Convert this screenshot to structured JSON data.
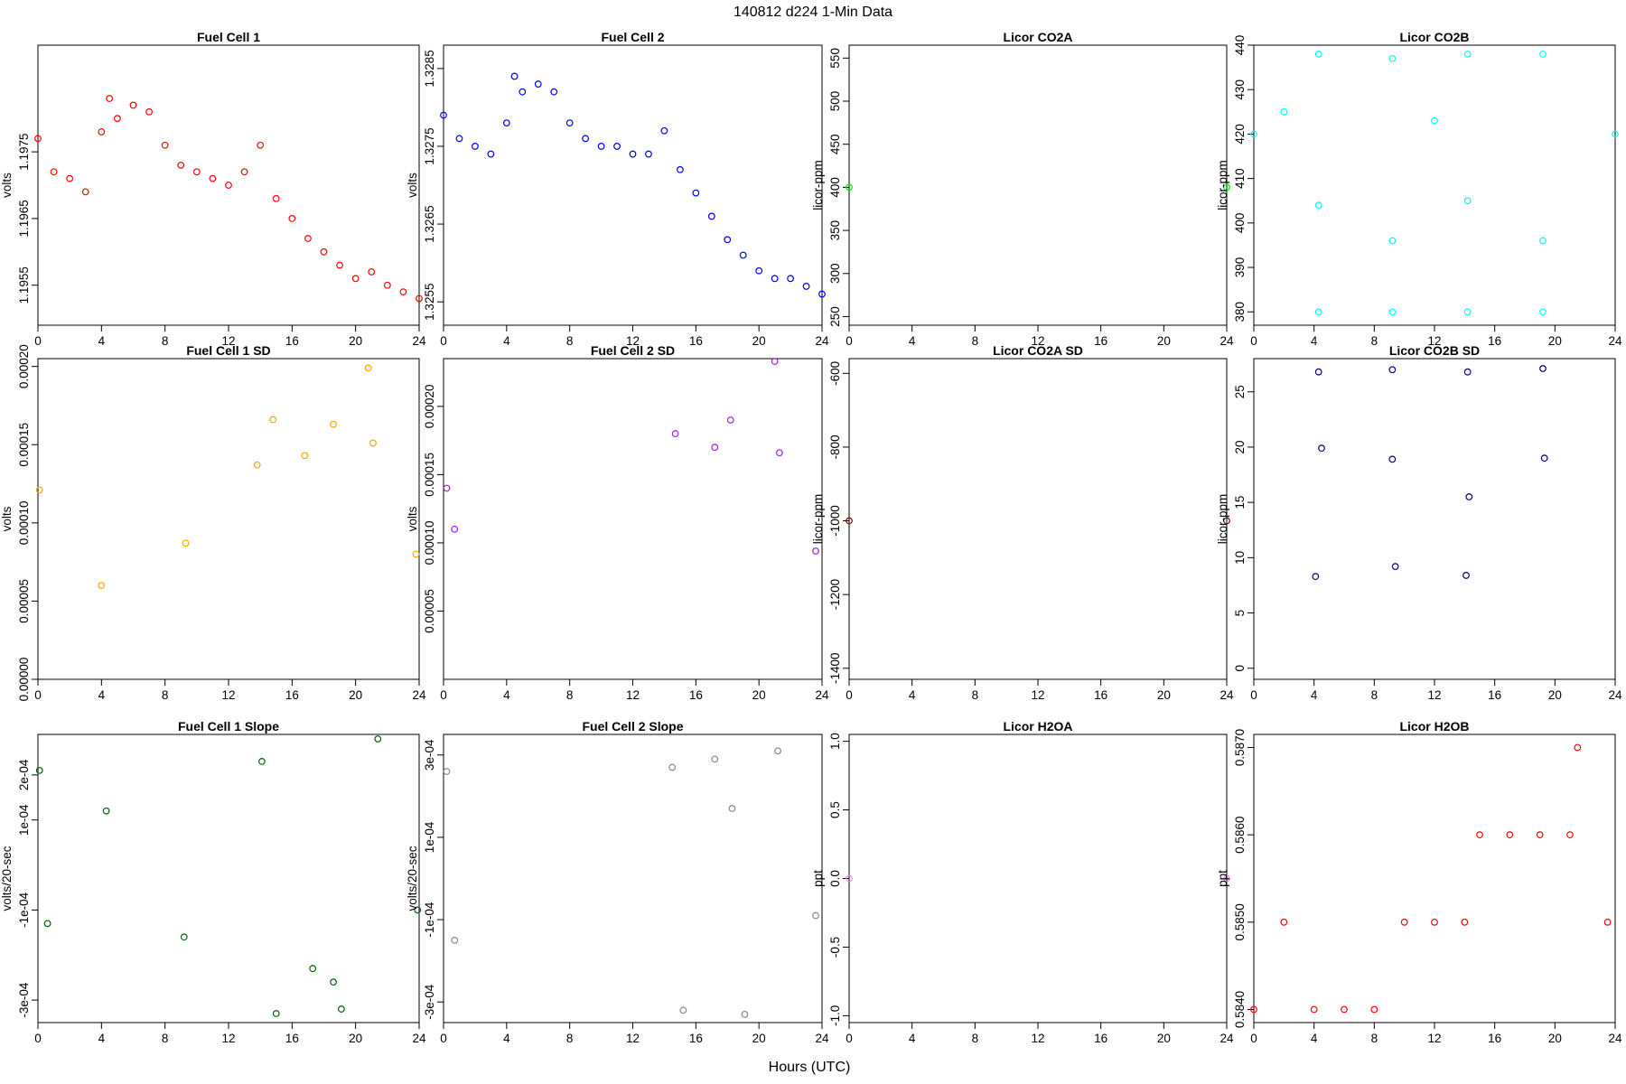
{
  "figure": {
    "title": "140812   d224   1-Min Data",
    "xlabel": "Hours (UTC)"
  },
  "chart_data": [
    {
      "type": "scatter",
      "title": "Fuel Cell 1",
      "ylabel": "volts",
      "color": "#ff0000",
      "xlim": [
        0,
        24
      ],
      "ylim": [
        1.1949,
        1.1991
      ],
      "xticks": [
        0,
        4,
        8,
        12,
        16,
        20,
        24
      ],
      "yticks": [
        1.1955,
        1.1965,
        1.1975
      ],
      "ytick_labels": [
        "1.1955",
        "1.1965",
        "1.1975"
      ],
      "x": [
        0,
        1,
        2,
        3,
        4,
        4.5,
        5,
        6,
        7,
        8,
        9,
        10,
        11,
        12,
        13,
        14,
        15,
        16,
        17,
        18,
        19,
        20,
        21,
        22,
        23,
        24
      ],
      "y": [
        1.1977,
        1.1972,
        1.1971,
        1.1969,
        1.1978,
        1.1983,
        1.198,
        1.1982,
        1.1981,
        1.1976,
        1.1973,
        1.1972,
        1.1971,
        1.197,
        1.1972,
        1.1976,
        1.1968,
        1.1965,
        1.1962,
        1.196,
        1.1958,
        1.1956,
        1.1957,
        1.1955,
        1.1954,
        1.1953
      ]
    },
    {
      "type": "scatter",
      "title": "Fuel Cell 2",
      "ylabel": "volts",
      "color": "#0000ee",
      "xlim": [
        0,
        24
      ],
      "ylim": [
        1.3252,
        1.3288
      ],
      "xticks": [
        0,
        4,
        8,
        12,
        16,
        20,
        24
      ],
      "yticks": [
        1.3255,
        1.3265,
        1.3275,
        1.3285
      ],
      "ytick_labels": [
        "1.3255",
        "1.3265",
        "1.3275",
        "1.3285"
      ],
      "x": [
        0,
        1,
        2,
        3,
        4,
        4.5,
        5,
        6,
        7,
        8,
        9,
        10,
        11,
        12,
        13,
        14,
        15,
        16,
        17,
        18,
        19,
        20,
        21,
        22,
        23,
        24
      ],
      "y": [
        1.3279,
        1.3276,
        1.3275,
        1.3274,
        1.3278,
        1.3284,
        1.3282,
        1.3283,
        1.3282,
        1.3278,
        1.3276,
        1.3275,
        1.3275,
        1.3274,
        1.3274,
        1.3277,
        1.3272,
        1.3269,
        1.3266,
        1.3263,
        1.3261,
        1.3259,
        1.3258,
        1.3258,
        1.3257,
        1.3256
      ]
    },
    {
      "type": "scatter",
      "title": "Licor CO2A",
      "ylabel": "licor-ppm",
      "color": "#00ee00",
      "xlim": [
        0,
        24
      ],
      "ylim": [
        240,
        565
      ],
      "xticks": [
        0,
        4,
        8,
        12,
        16,
        20,
        24
      ],
      "yticks": [
        250,
        300,
        350,
        400,
        450,
        500,
        550
      ],
      "ytick_labels": [
        "250",
        "300",
        "350",
        "400",
        "450",
        "500",
        "550"
      ],
      "x": [
        0,
        24
      ],
      "y": [
        400,
        400
      ]
    },
    {
      "type": "scatter",
      "title": "Licor CO2B",
      "ylabel": "licor-ppm",
      "color": "#00ffff",
      "xlim": [
        0,
        24
      ],
      "ylim": [
        377,
        440
      ],
      "xticks": [
        0,
        4,
        8,
        12,
        16,
        20,
        24
      ],
      "yticks": [
        380,
        390,
        400,
        410,
        420,
        430,
        440
      ],
      "ytick_labels": [
        "380",
        "390",
        "400",
        "410",
        "420",
        "430",
        "440"
      ],
      "x": [
        0,
        2,
        4.3,
        4.3,
        4.3,
        9.2,
        9.2,
        9.2,
        12,
        14.2,
        14.2,
        14.2,
        19.2,
        19.2,
        19.2,
        24
      ],
      "y": [
        420,
        425,
        438,
        380,
        404,
        437,
        380,
        396,
        423,
        438,
        380,
        405,
        438,
        380,
        396,
        420
      ]
    },
    {
      "type": "scatter",
      "title": "Fuel Cell 1 SD",
      "ylabel": "volts",
      "color": "#ffa500",
      "xlim": [
        0,
        24
      ],
      "ylim": [
        0,
        0.000205
      ],
      "xticks": [
        0,
        4,
        8,
        12,
        16,
        20,
        24
      ],
      "yticks": [
        0,
        5e-05,
        0.0001,
        0.00015,
        0.0002
      ],
      "ytick_labels": [
        "0.00000",
        "0.00005",
        "0.00010",
        "0.00015",
        "0.00020"
      ],
      "x": [
        0.1,
        4,
        9.3,
        13.8,
        14.8,
        16.8,
        18.6,
        20.8,
        21.1,
        23.8
      ],
      "y": [
        0.000121,
        6e-05,
        8.7e-05,
        0.000137,
        0.000166,
        0.000143,
        0.000163,
        0.000199,
        0.000151,
        8e-05
      ]
    },
    {
      "type": "scatter",
      "title": "Fuel Cell 2 SD",
      "ylabel": "volts",
      "color": "#a020f0",
      "xlim": [
        0,
        24
      ],
      "ylim": [
        0,
        0.000235
      ],
      "xticks": [
        0,
        4,
        8,
        12,
        16,
        20,
        24
      ],
      "yticks": [
        5e-05,
        0.0001,
        0.00015,
        0.0002
      ],
      "ytick_labels": [
        "0.00005",
        "0.00010",
        "0.00015",
        "0.00020"
      ],
      "x": [
        0.2,
        0.7,
        14.7,
        17.2,
        18.2,
        21,
        21.3,
        23.6
      ],
      "y": [
        0.00014,
        0.00011,
        0.00018,
        0.00017,
        0.00019,
        0.000233,
        0.000166,
        9.4e-05
      ]
    },
    {
      "type": "scatter",
      "title": "Licor CO2A SD",
      "ylabel": "licor-ppm",
      "color": "#8b0000",
      "xlim": [
        0,
        24
      ],
      "ylim": [
        -1430,
        -560
      ],
      "xticks": [
        0,
        4,
        8,
        12,
        16,
        20,
        24
      ],
      "yticks": [
        -1400,
        -1200,
        -1000,
        -800,
        -600
      ],
      "ytick_labels": [
        "-1400",
        "-1200",
        "-1000",
        "-800",
        "-600"
      ],
      "x": [
        0,
        24
      ],
      "y": [
        -1000,
        -1000
      ]
    },
    {
      "type": "scatter",
      "title": "Licor CO2B SD",
      "ylabel": "licor-ppm",
      "color": "#000080",
      "xlim": [
        0,
        24
      ],
      "ylim": [
        -1,
        28
      ],
      "xticks": [
        0,
        4,
        8,
        12,
        16,
        20,
        24
      ],
      "yticks": [
        0,
        5,
        10,
        15,
        20,
        25
      ],
      "ytick_labels": [
        "0",
        "5",
        "10",
        "15",
        "20",
        "25"
      ],
      "x": [
        4.3,
        4.5,
        9.2,
        9.2,
        9.4,
        14.2,
        14.3,
        19.2,
        19.3,
        4.1,
        14.1
      ],
      "y": [
        26.8,
        19.9,
        27,
        18.9,
        9.2,
        26.8,
        15.5,
        27.1,
        19,
        8.3,
        8.4
      ]
    },
    {
      "type": "scatter",
      "title": "Fuel Cell 1 Slope",
      "ylabel": "volts/20-sec",
      "color": "#006400",
      "xlim": [
        0,
        24
      ],
      "ylim": [
        -0.00035,
        0.00029
      ],
      "xticks": [
        0,
        4,
        8,
        12,
        16,
        20,
        24
      ],
      "yticks": [
        -0.0003,
        -0.0001,
        0.0001,
        0.0002
      ],
      "ytick_labels": [
        "-3e-04",
        "-1e-04",
        "1e-04",
        "2e-04"
      ],
      "x": [
        0.1,
        0.6,
        4.3,
        9.2,
        14.1,
        15,
        17.3,
        18.6,
        19.1,
        21.4,
        23.9
      ],
      "y": [
        0.00021,
        -0.00013,
        0.00012,
        -0.00016,
        0.00023,
        -0.00033,
        -0.00023,
        -0.00026,
        -0.00032,
        0.00028,
        -0.0001
      ]
    },
    {
      "type": "scatter",
      "title": "Fuel Cell 2 Slope",
      "ylabel": "volts/20-sec",
      "color": "#888888",
      "xlim": [
        0,
        24
      ],
      "ylim": [
        -0.00035,
        0.00035
      ],
      "xticks": [
        0,
        4,
        8,
        12,
        16,
        20,
        24
      ],
      "yticks": [
        -0.0003,
        -0.0001,
        0.0001,
        0.0003
      ],
      "ytick_labels": [
        "-3e-04",
        "-1e-04",
        "1e-04",
        "3e-04"
      ],
      "x": [
        0.2,
        0.7,
        14.5,
        15.2,
        17.2,
        18.3,
        19.1,
        21.2,
        23.6
      ],
      "y": [
        0.00026,
        -0.00015,
        0.00027,
        -0.00032,
        0.00029,
        0.00017,
        -0.00033,
        0.00031,
        -9e-05
      ]
    },
    {
      "type": "scatter",
      "title": "Licor H2OA",
      "ylabel": "ppt",
      "color": "#ee82ee",
      "xlim": [
        0,
        24
      ],
      "ylim": [
        -1.05,
        1.05
      ],
      "xticks": [
        0,
        4,
        8,
        12,
        16,
        20,
        24
      ],
      "yticks": [
        -1,
        -0.5,
        0,
        0.5,
        1
      ],
      "ytick_labels": [
        "-1.0",
        "-0.5",
        "0.0",
        "0.5",
        "1.0"
      ],
      "x": [
        0,
        24
      ],
      "y": [
        0,
        0
      ]
    },
    {
      "type": "scatter",
      "title": "Licor H2OB",
      "ylabel": "ppt",
      "color": "#ff0000",
      "xlim": [
        0,
        24
      ],
      "ylim": [
        0.58385,
        0.58715
      ],
      "xticks": [
        0,
        4,
        8,
        12,
        16,
        20,
        24
      ],
      "yticks": [
        0.584,
        0.585,
        0.586,
        0.587
      ],
      "ytick_labels": [
        "0.5840",
        "0.5850",
        "0.5860",
        "0.5870"
      ],
      "x": [
        0,
        2,
        4,
        6,
        8,
        10,
        12,
        14,
        15,
        17,
        19,
        21,
        21.5,
        23.5
      ],
      "y": [
        0.584,
        0.585,
        0.584,
        0.584,
        0.584,
        0.585,
        0.585,
        0.585,
        0.586,
        0.586,
        0.586,
        0.586,
        0.587,
        0.585
      ]
    }
  ]
}
